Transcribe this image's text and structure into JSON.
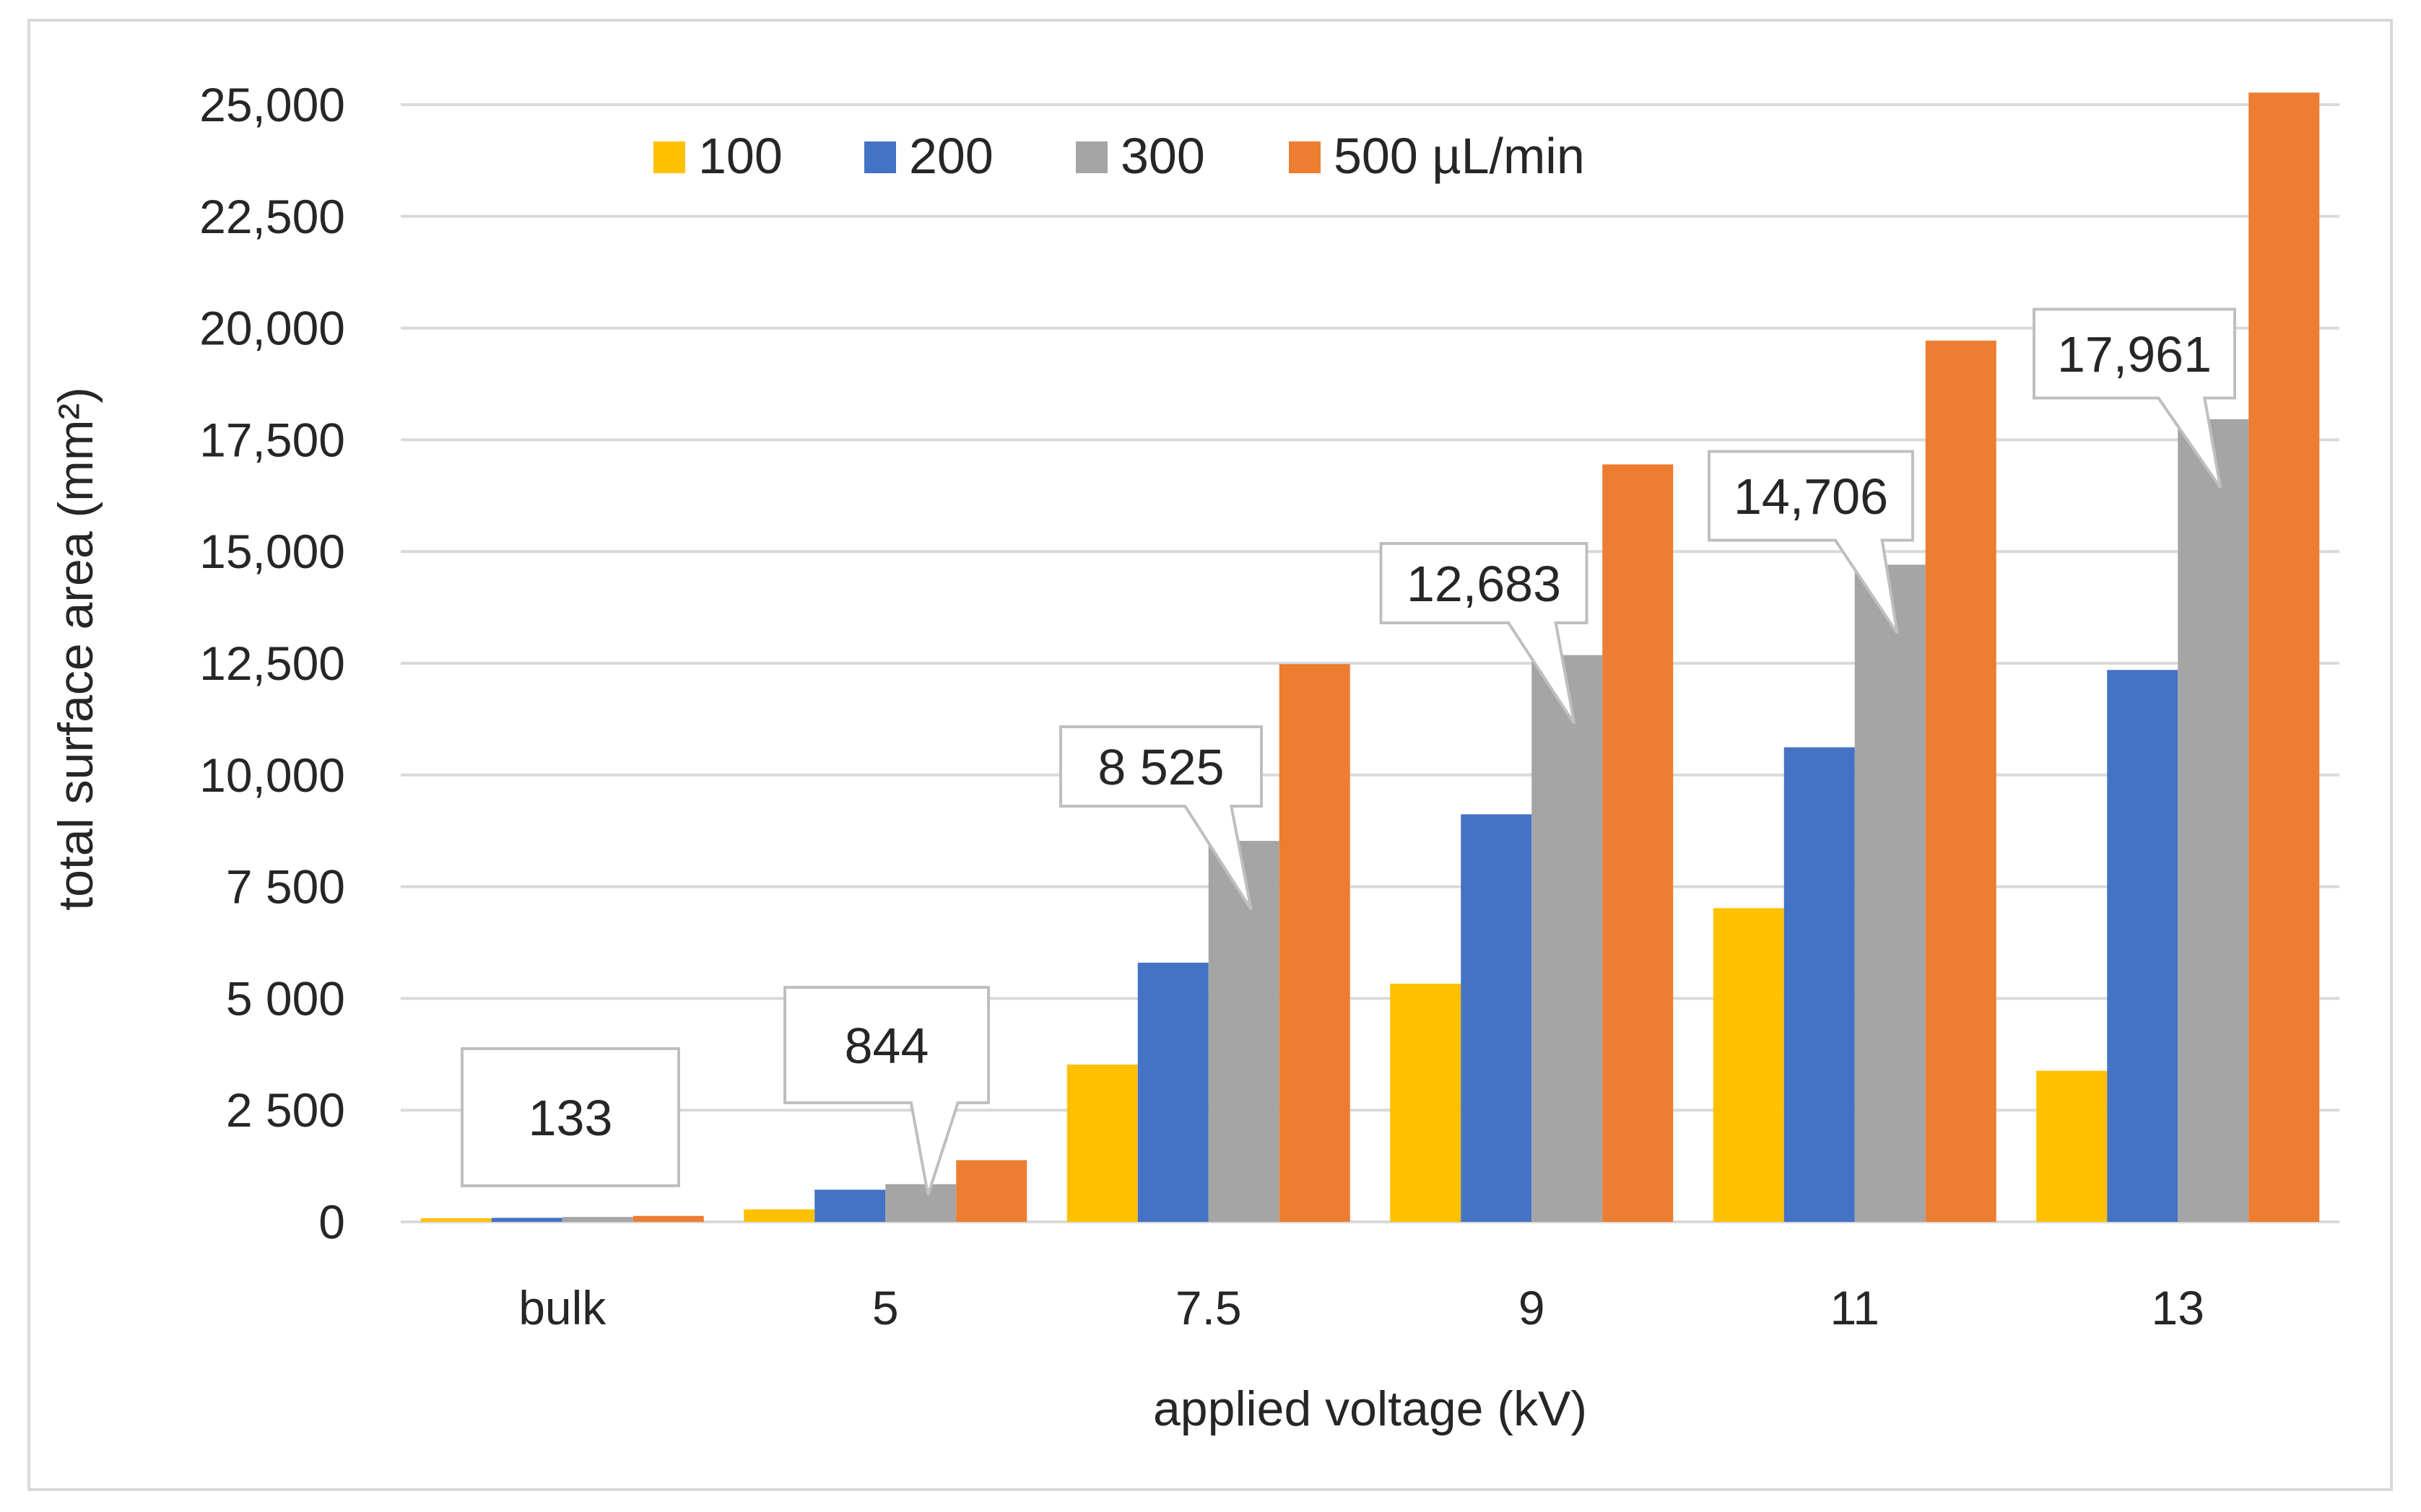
{
  "chart_data": {
    "type": "bar",
    "title": "",
    "xlabel": "applied voltage (kV)",
    "ylabel": "total surface area (mm²)",
    "categories": [
      "bulk",
      "5",
      "7.5",
      "9",
      "11",
      "13"
    ],
    "series": [
      {
        "name": "100",
        "color": "#FFC000",
        "values": [
          80,
          280,
          3520,
          5330,
          7020,
          3380
        ]
      },
      {
        "name": "200",
        "color": "#4472C4",
        "values": [
          90,
          720,
          5800,
          9120,
          10620,
          12350
        ]
      },
      {
        "name": "300",
        "color": "#A5A5A5",
        "values": [
          110,
          844,
          8525,
          12683,
          14706,
          17961
        ]
      },
      {
        "name": "500 µL/min",
        "color": "#ED7D31",
        "values": [
          133,
          1380,
          12480,
          16950,
          19720,
          25270
        ]
      }
    ],
    "ylim": [
      0,
      25000
    ],
    "yticks": [
      0,
      2500,
      5000,
      7500,
      10000,
      12500,
      15000,
      17500,
      20000,
      22500,
      25000
    ],
    "ytick_labels": [
      "0",
      "2 500",
      "5 000",
      "7 500",
      "10,000",
      "12,500",
      "15,000",
      "17,500",
      "20,000",
      "22,500",
      "25,000"
    ],
    "grid": true,
    "legend": {
      "position": "top-left",
      "entries": [
        "100",
        "200",
        "300",
        "500 µL/min"
      ]
    },
    "callouts": [
      {
        "category": "bulk",
        "series": "500 µL/min",
        "label": "133"
      },
      {
        "category": "5",
        "series": "300",
        "label": "844"
      },
      {
        "category": "7.5",
        "series": "300",
        "label": "8 525"
      },
      {
        "category": "9",
        "series": "300",
        "label": "12,683"
      },
      {
        "category": "11",
        "series": "300",
        "label": "14,706"
      },
      {
        "category": "13",
        "series": "300",
        "label": "17,961"
      }
    ]
  }
}
